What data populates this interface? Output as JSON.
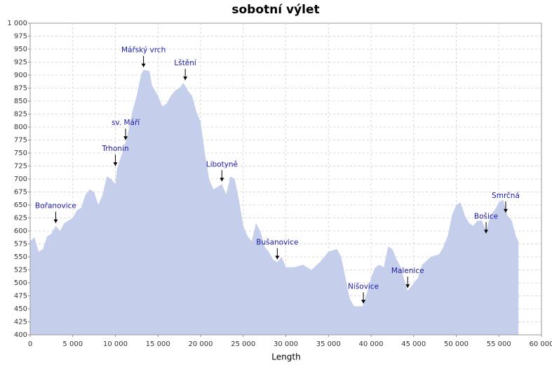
{
  "chart_data": {
    "type": "area",
    "title": "sobotní výlet",
    "xlabel": "Length",
    "color": "#c5cfec",
    "grid": true,
    "x": [
      0,
      500,
      1000,
      1500,
      2000,
      2500,
      3000,
      3500,
      4000,
      5000,
      5500,
      6000,
      6500,
      7000,
      7500,
      8000,
      8500,
      9000,
      9500,
      10000,
      10200,
      11000,
      11500,
      12000,
      12500,
      13000,
      13300,
      14000,
      14300,
      15000,
      15500,
      16000,
      16500,
      17000,
      17500,
      18000,
      18500,
      19000,
      19500,
      20000,
      20500,
      21000,
      21500,
      22000,
      22500,
      23000,
      23500,
      24000,
      24500,
      25000,
      25500,
      26000,
      26500,
      27000,
      27500,
      28000,
      28500,
      29000,
      29500,
      30000,
      31000,
      32000,
      33000,
      34000,
      35000,
      36000,
      36500,
      37000,
      37500,
      38000,
      38500,
      39000,
      39500,
      40000,
      40500,
      41000,
      41500,
      42000,
      42500,
      43000,
      43500,
      44000,
      44300,
      44800,
      45500,
      46000,
      47000,
      48000,
      48500,
      49000,
      49500,
      50000,
      50500,
      51000,
      51500,
      52000,
      52500,
      53000,
      53500,
      54000,
      54500,
      55000,
      55500,
      56000,
      56500,
      57000,
      57300
    ],
    "values": [
      580,
      588,
      560,
      565,
      590,
      595,
      610,
      600,
      615,
      625,
      640,
      645,
      670,
      680,
      675,
      650,
      670,
      705,
      700,
      690,
      720,
      760,
      790,
      830,
      860,
      900,
      910,
      908,
      880,
      860,
      840,
      845,
      860,
      870,
      875,
      885,
      870,
      860,
      830,
      810,
      750,
      700,
      680,
      685,
      690,
      670,
      705,
      700,
      660,
      610,
      590,
      580,
      615,
      600,
      570,
      560,
      545,
      540,
      550,
      530,
      530,
      535,
      525,
      540,
      560,
      565,
      550,
      510,
      470,
      455,
      455,
      455,
      480,
      510,
      530,
      535,
      530,
      570,
      565,
      545,
      530,
      500,
      485,
      495,
      510,
      535,
      550,
      555,
      570,
      590,
      630,
      650,
      655,
      630,
      615,
      610,
      620,
      620,
      600,
      630,
      640,
      655,
      660,
      630,
      620,
      590,
      580
    ],
    "xlim": [
      0,
      60000
    ],
    "xticks": [
      0,
      {
        "value": 5000,
        "label": "5 000"
      },
      {
        "value": 10000,
        "label": "10 000"
      },
      {
        "value": 15000,
        "label": "15 000"
      },
      {
        "value": 20000,
        "label": "20 000"
      },
      {
        "value": 25000,
        "label": "25 000"
      },
      {
        "value": 30000,
        "label": "30 000"
      },
      {
        "value": 35000,
        "label": "35 000"
      },
      {
        "value": 40000,
        "label": "40 000"
      },
      {
        "value": 45000,
        "label": "45 000"
      },
      {
        "value": 50000,
        "label": "50 000"
      },
      {
        "value": 55000,
        "label": "55 000"
      },
      {
        "value": 60000,
        "label": "60 000"
      }
    ],
    "ylim": [
      400,
      1000
    ],
    "yticks": [
      400,
      425,
      450,
      475,
      500,
      525,
      550,
      575,
      600,
      625,
      650,
      675,
      700,
      725,
      750,
      775,
      800,
      825,
      850,
      875,
      900,
      925,
      950,
      975,
      {
        "value": 1000,
        "label": "1 000"
      }
    ],
    "annotations": [
      {
        "text": "Bořanovice",
        "x": 3000,
        "y": 610
      },
      {
        "text": "Trhonín",
        "x": 10000,
        "y": 720
      },
      {
        "text": "sv. Máří",
        "x": 11200,
        "y": 770
      },
      {
        "text": "Mářský vrch",
        "x": 13300,
        "y": 910
      },
      {
        "text": "Lštění",
        "x": 18200,
        "y": 885
      },
      {
        "text": "Libotyně",
        "x": 22500,
        "y": 690
      },
      {
        "text": "Bušanovice",
        "x": 29000,
        "y": 540
      },
      {
        "text": "Nišovice",
        "x": 39100,
        "y": 455
      },
      {
        "text": "Malenice",
        "x": 44300,
        "y": 485
      },
      {
        "text": "Bošice",
        "x": 53500,
        "y": 590
      },
      {
        "text": "Smrčná",
        "x": 55800,
        "y": 630
      }
    ]
  }
}
